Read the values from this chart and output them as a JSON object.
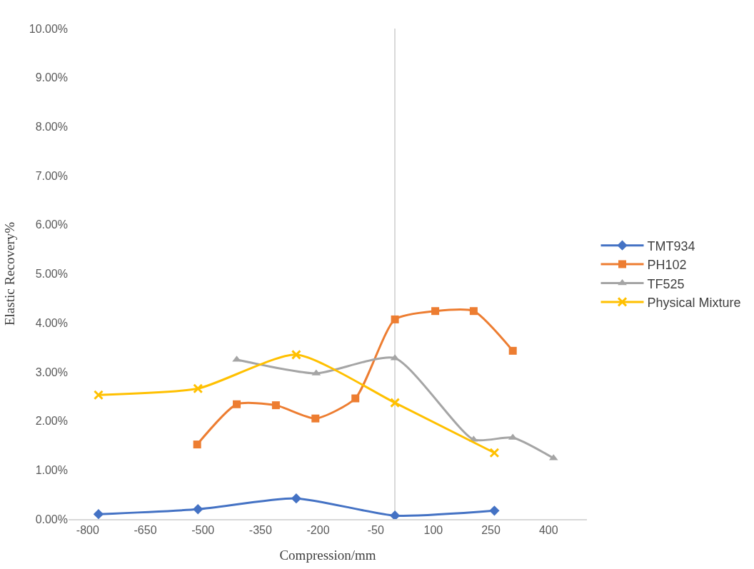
{
  "chart_data": {
    "type": "line",
    "xlabel": "Compression/mm",
    "ylabel": "Elastic Recovery%",
    "xlim": [
      -850,
      500
    ],
    "xticks": [
      -800,
      -650,
      -500,
      -350,
      -200,
      -50,
      100,
      250,
      400
    ],
    "ylim": [
      0,
      10
    ],
    "yticks": [
      {
        "value": 0,
        "label": "0.00%"
      },
      {
        "value": 1,
        "label": "1.00%"
      },
      {
        "value": 2,
        "label": "2.00%"
      },
      {
        "value": 3,
        "label": "3.00%"
      },
      {
        "value": 4,
        "label": "4.00%"
      },
      {
        "value": 5,
        "label": "5.00%"
      },
      {
        "value": 6,
        "label": "6.00%"
      },
      {
        "value": 7,
        "label": "7.00%"
      },
      {
        "value": 8,
        "label": "8.00%"
      },
      {
        "value": 9,
        "label": "9.00%"
      },
      {
        "value": 10,
        "label": "10.00%"
      }
    ],
    "grid": false,
    "legend": "right",
    "series": [
      {
        "name": "TMT934",
        "color": "#4472c4",
        "marker": "diamond",
        "x": [
          -772,
          -513,
          -257,
          0,
          259
        ],
        "values": [
          0.1,
          0.2,
          0.42,
          0.07,
          0.17
        ]
      },
      {
        "name": "PH102",
        "color": "#ed7d31",
        "marker": "square",
        "x": [
          -515,
          -412,
          -310,
          -207,
          -103,
          0,
          105,
          205,
          307
        ],
        "values": [
          1.52,
          2.34,
          2.32,
          2.05,
          2.46,
          4.07,
          4.24,
          4.24,
          3.43
        ]
      },
      {
        "name": "TF525",
        "color": "#a5a5a5",
        "marker": "triangle",
        "x": [
          -412,
          -205,
          0,
          205,
          307,
          413
        ],
        "values": [
          3.25,
          2.97,
          3.28,
          1.62,
          1.66,
          1.24
        ]
      },
      {
        "name": "Physical Mixture",
        "color": "#ffc000",
        "marker": "cross",
        "x": [
          -772,
          -513,
          -257,
          0,
          259
        ],
        "values": [
          2.53,
          2.66,
          3.35,
          2.37,
          1.35
        ]
      }
    ]
  }
}
